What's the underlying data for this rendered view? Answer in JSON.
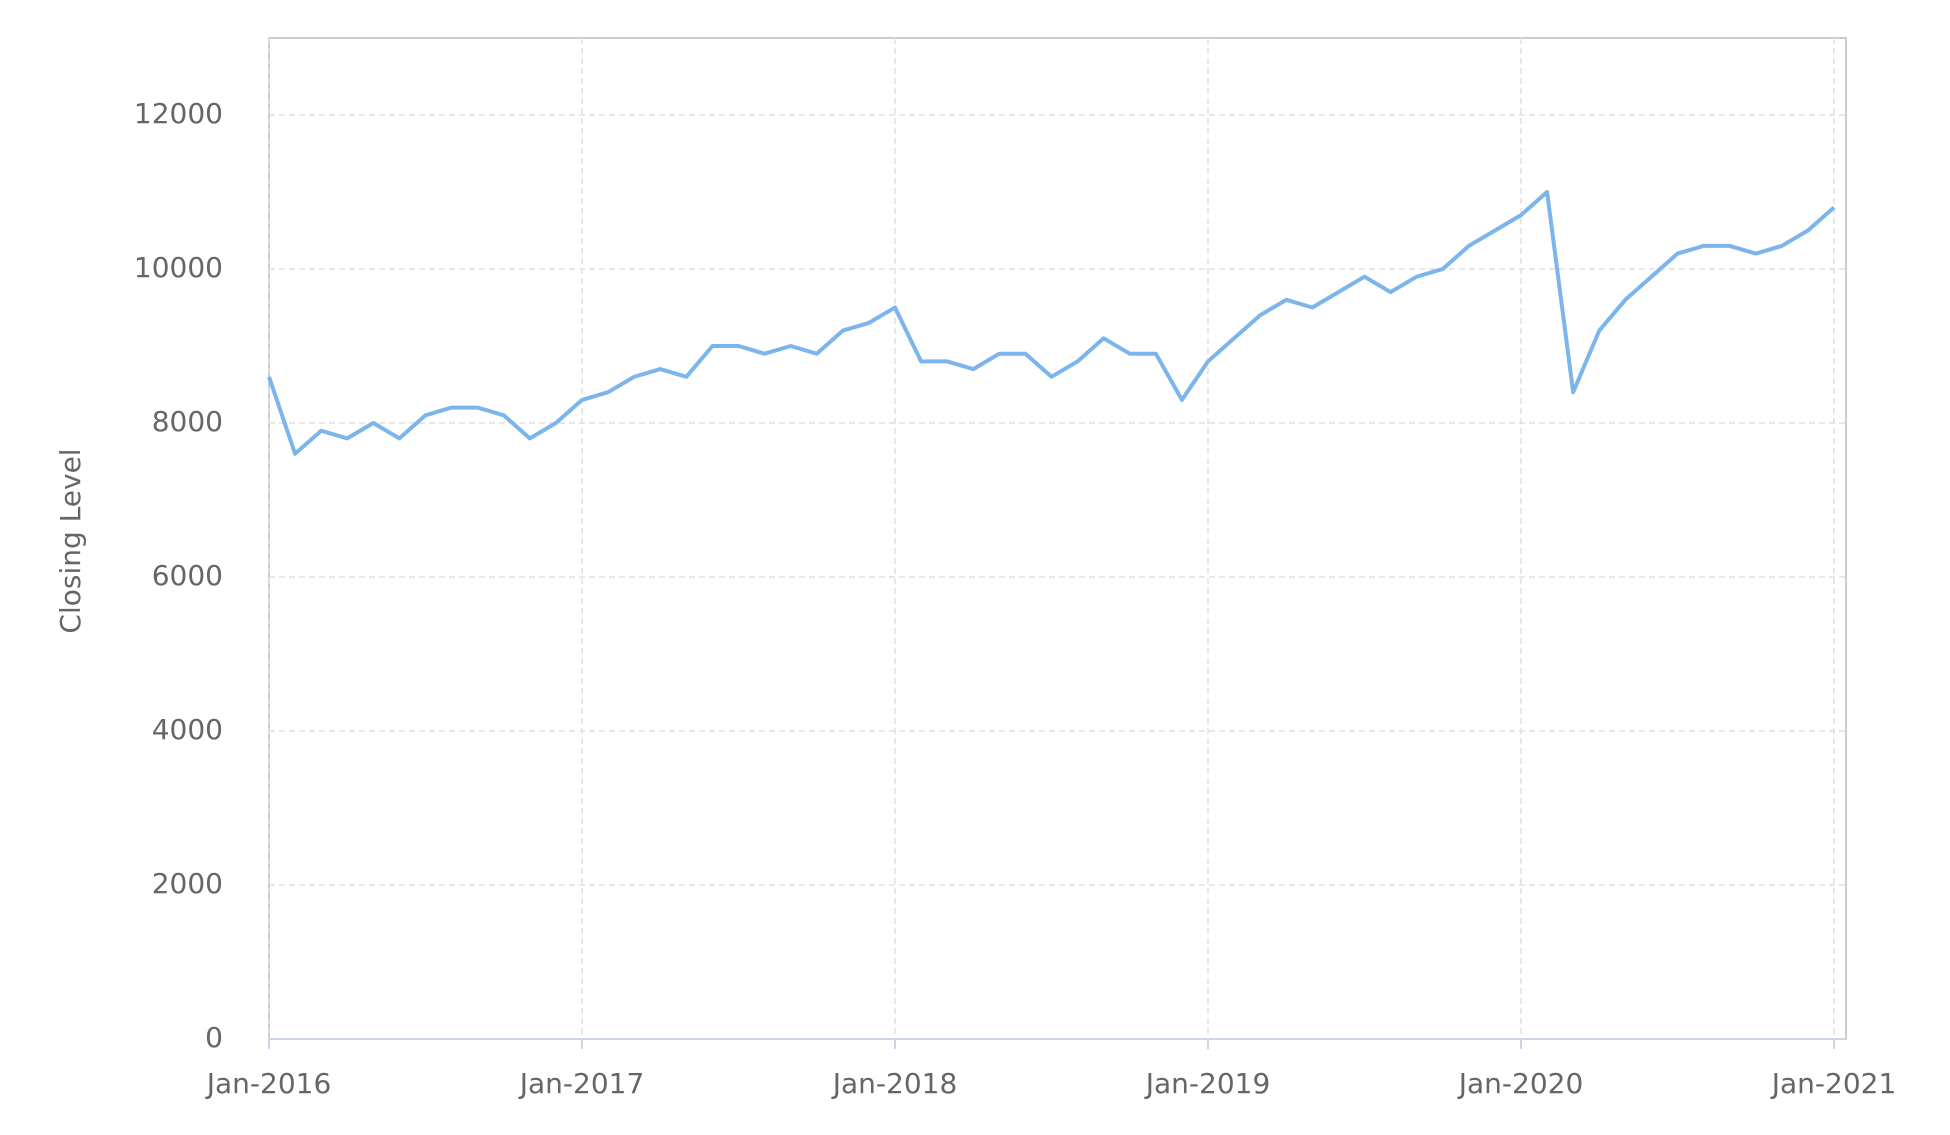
{
  "chart_data": {
    "type": "line",
    "y_label": "Closing Level",
    "x": [
      "2016-01",
      "2016-02",
      "2016-03",
      "2016-04",
      "2016-05",
      "2016-06",
      "2016-07",
      "2016-08",
      "2016-09",
      "2016-10",
      "2016-11",
      "2016-12",
      "2017-01",
      "2017-02",
      "2017-03",
      "2017-04",
      "2017-05",
      "2017-06",
      "2017-07",
      "2017-08",
      "2017-09",
      "2017-10",
      "2017-11",
      "2017-12",
      "2018-01",
      "2018-02",
      "2018-03",
      "2018-04",
      "2018-05",
      "2018-06",
      "2018-07",
      "2018-08",
      "2018-09",
      "2018-10",
      "2018-11",
      "2018-12",
      "2019-01",
      "2019-02",
      "2019-03",
      "2019-04",
      "2019-05",
      "2019-06",
      "2019-07",
      "2019-08",
      "2019-09",
      "2019-10",
      "2019-11",
      "2019-12",
      "2020-01",
      "2020-02",
      "2020-03",
      "2020-04",
      "2020-05",
      "2020-06",
      "2020-07",
      "2020-08",
      "2020-09",
      "2020-10",
      "2020-11",
      "2020-12",
      "2021-01"
    ],
    "series": [
      {
        "name": "Closing Level",
        "color": "#7cb5ec",
        "values": [
          8600,
          7600,
          7900,
          7800,
          8000,
          7800,
          8100,
          8200,
          8200,
          8100,
          7800,
          8000,
          8300,
          8400,
          8600,
          8700,
          8600,
          9000,
          9000,
          8900,
          9000,
          8900,
          9200,
          9300,
          9500,
          8800,
          8800,
          8700,
          8900,
          8900,
          8600,
          8800,
          9100,
          8900,
          8900,
          8300,
          8800,
          9100,
          9400,
          9600,
          9500,
          9700,
          9900,
          9700,
          9900,
          10000,
          10300,
          10500,
          10700,
          11000,
          8400,
          9200,
          9600,
          9900,
          10200,
          10300,
          10300,
          10200,
          10300,
          10500,
          10800
        ]
      }
    ],
    "xlim": [
      "2016-01",
      "2021-01"
    ],
    "xticks": [
      {
        "value": "2016-01",
        "label": "Jan-2016"
      },
      {
        "value": "2017-01",
        "label": "Jan-2017"
      },
      {
        "value": "2018-01",
        "label": "Jan-2018"
      },
      {
        "value": "2019-01",
        "label": "Jan-2019"
      },
      {
        "value": "2020-01",
        "label": "Jan-2020"
      },
      {
        "value": "2021-01",
        "label": "Jan-2021"
      }
    ],
    "ylim": [
      0,
      13000
    ],
    "yticks": [
      0,
      2000,
      4000,
      6000,
      8000,
      10000,
      12000
    ],
    "grid": true
  }
}
